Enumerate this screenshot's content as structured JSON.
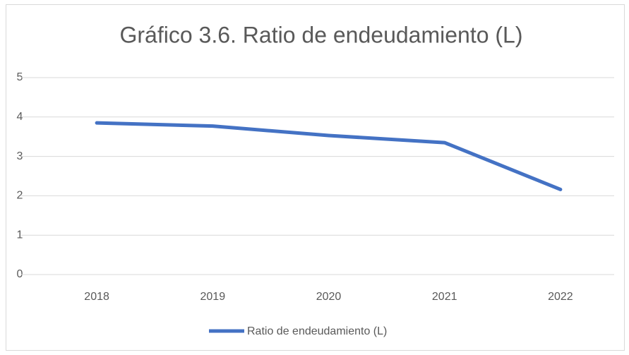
{
  "chart_data": {
    "type": "line",
    "title": "Gráfico 3.6. Ratio de endeudamiento (L)",
    "categories": [
      "2018",
      "2019",
      "2020",
      "2021",
      "2022"
    ],
    "series": [
      {
        "name": "Ratio de endeudamiento (L)",
        "color": "#4472c4",
        "values": [
          3.85,
          3.77,
          3.53,
          3.35,
          2.16
        ]
      }
    ],
    "ylim": [
      0,
      5
    ],
    "yticks": [
      0,
      1,
      2,
      3,
      4,
      5
    ],
    "grid": true,
    "legend": "bottom"
  }
}
